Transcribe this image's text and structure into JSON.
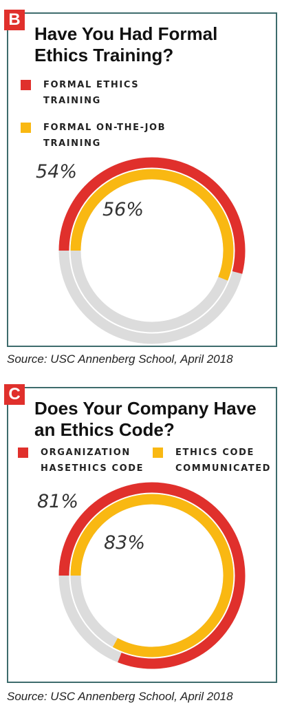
{
  "colors": {
    "red": "#e0302c",
    "yellow": "#f9b812",
    "gray": "#dcdcdc",
    "frame": "#3d6b6c"
  },
  "panels": [
    {
      "badge": "B",
      "title": "Have You Had Formal Ethics Training?",
      "legend": [
        {
          "label": "FORMAL ETHICS TRAINING",
          "color": "#e0302c"
        },
        {
          "label": "FORMAL ON-THE-JOB TRAINING",
          "color": "#f9b812"
        }
      ],
      "source": "Source: USC Annenberg School, April 2018"
    },
    {
      "badge": "C",
      "title": "Does Your Company Have an Ethics Code?",
      "legend": [
        {
          "label": "ORGANIZATION HASETHICS CODE",
          "color": "#e0302c"
        },
        {
          "label": "ETHICS CODE COMMUNICATED",
          "color": "#f9b812"
        }
      ],
      "source": "Source: USC Annenberg School, April 2018"
    }
  ],
  "chart_data": [
    {
      "type": "radial-bar",
      "title": "Have You Had Formal Ethics Training?",
      "series": [
        {
          "name": "FORMAL ETHICS TRAINING",
          "value": 54,
          "label": "54%"
        },
        {
          "name": "FORMAL ON-THE-JOB TRAINING",
          "value": 56,
          "label": "56%"
        }
      ],
      "unit": "%",
      "max": 100
    },
    {
      "type": "radial-bar",
      "title": "Does Your Company Have an Ethics Code?",
      "series": [
        {
          "name": "ORGANIZATION HASETHICS CODE",
          "value": 81,
          "label": "81%"
        },
        {
          "name": "ETHICS CODE COMMUNICATED",
          "value": 83,
          "label": "83%"
        }
      ],
      "unit": "%",
      "max": 100
    }
  ]
}
